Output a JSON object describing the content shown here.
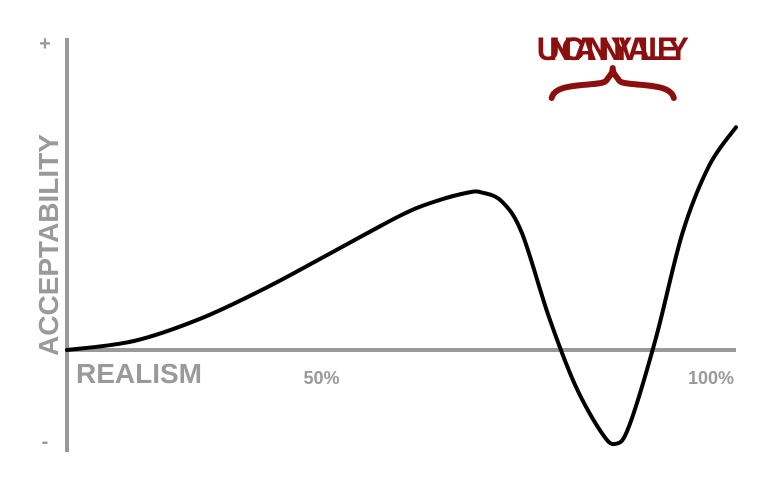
{
  "colors": {
    "axis": "#999999",
    "curve": "#000000",
    "annotation": "#8b0f0f",
    "label": "#9a9a9a"
  },
  "chart_data": {
    "type": "line",
    "xlabel": "REALISM",
    "ylabel": "ACCEPTABILITY",
    "y_top_label": "+",
    "y_bottom_label": "-",
    "x_tick_labels": [
      "50%",
      "100%"
    ],
    "x_ticks": [
      50,
      100
    ],
    "xlim": [
      0,
      100
    ],
    "ylim": [
      -1,
      1
    ],
    "grid": false,
    "legend": "none",
    "annotation": {
      "text": "UNCANNY VALLEY",
      "x_range": [
        72,
        91
      ]
    },
    "series": [
      {
        "x": [
          0,
          10,
          20,
          30,
          40,
          50,
          55,
          60,
          62,
          65,
          68,
          72,
          76,
          80,
          82,
          84,
          88,
          92,
          96,
          100
        ],
        "y": [
          0,
          0.04,
          0.14,
          0.28,
          0.44,
          0.6,
          0.66,
          0.7,
          0.7,
          0.66,
          0.52,
          0.15,
          -0.35,
          -0.82,
          -0.92,
          -0.75,
          0.05,
          0.52,
          0.82,
          0.99
        ]
      }
    ]
  }
}
